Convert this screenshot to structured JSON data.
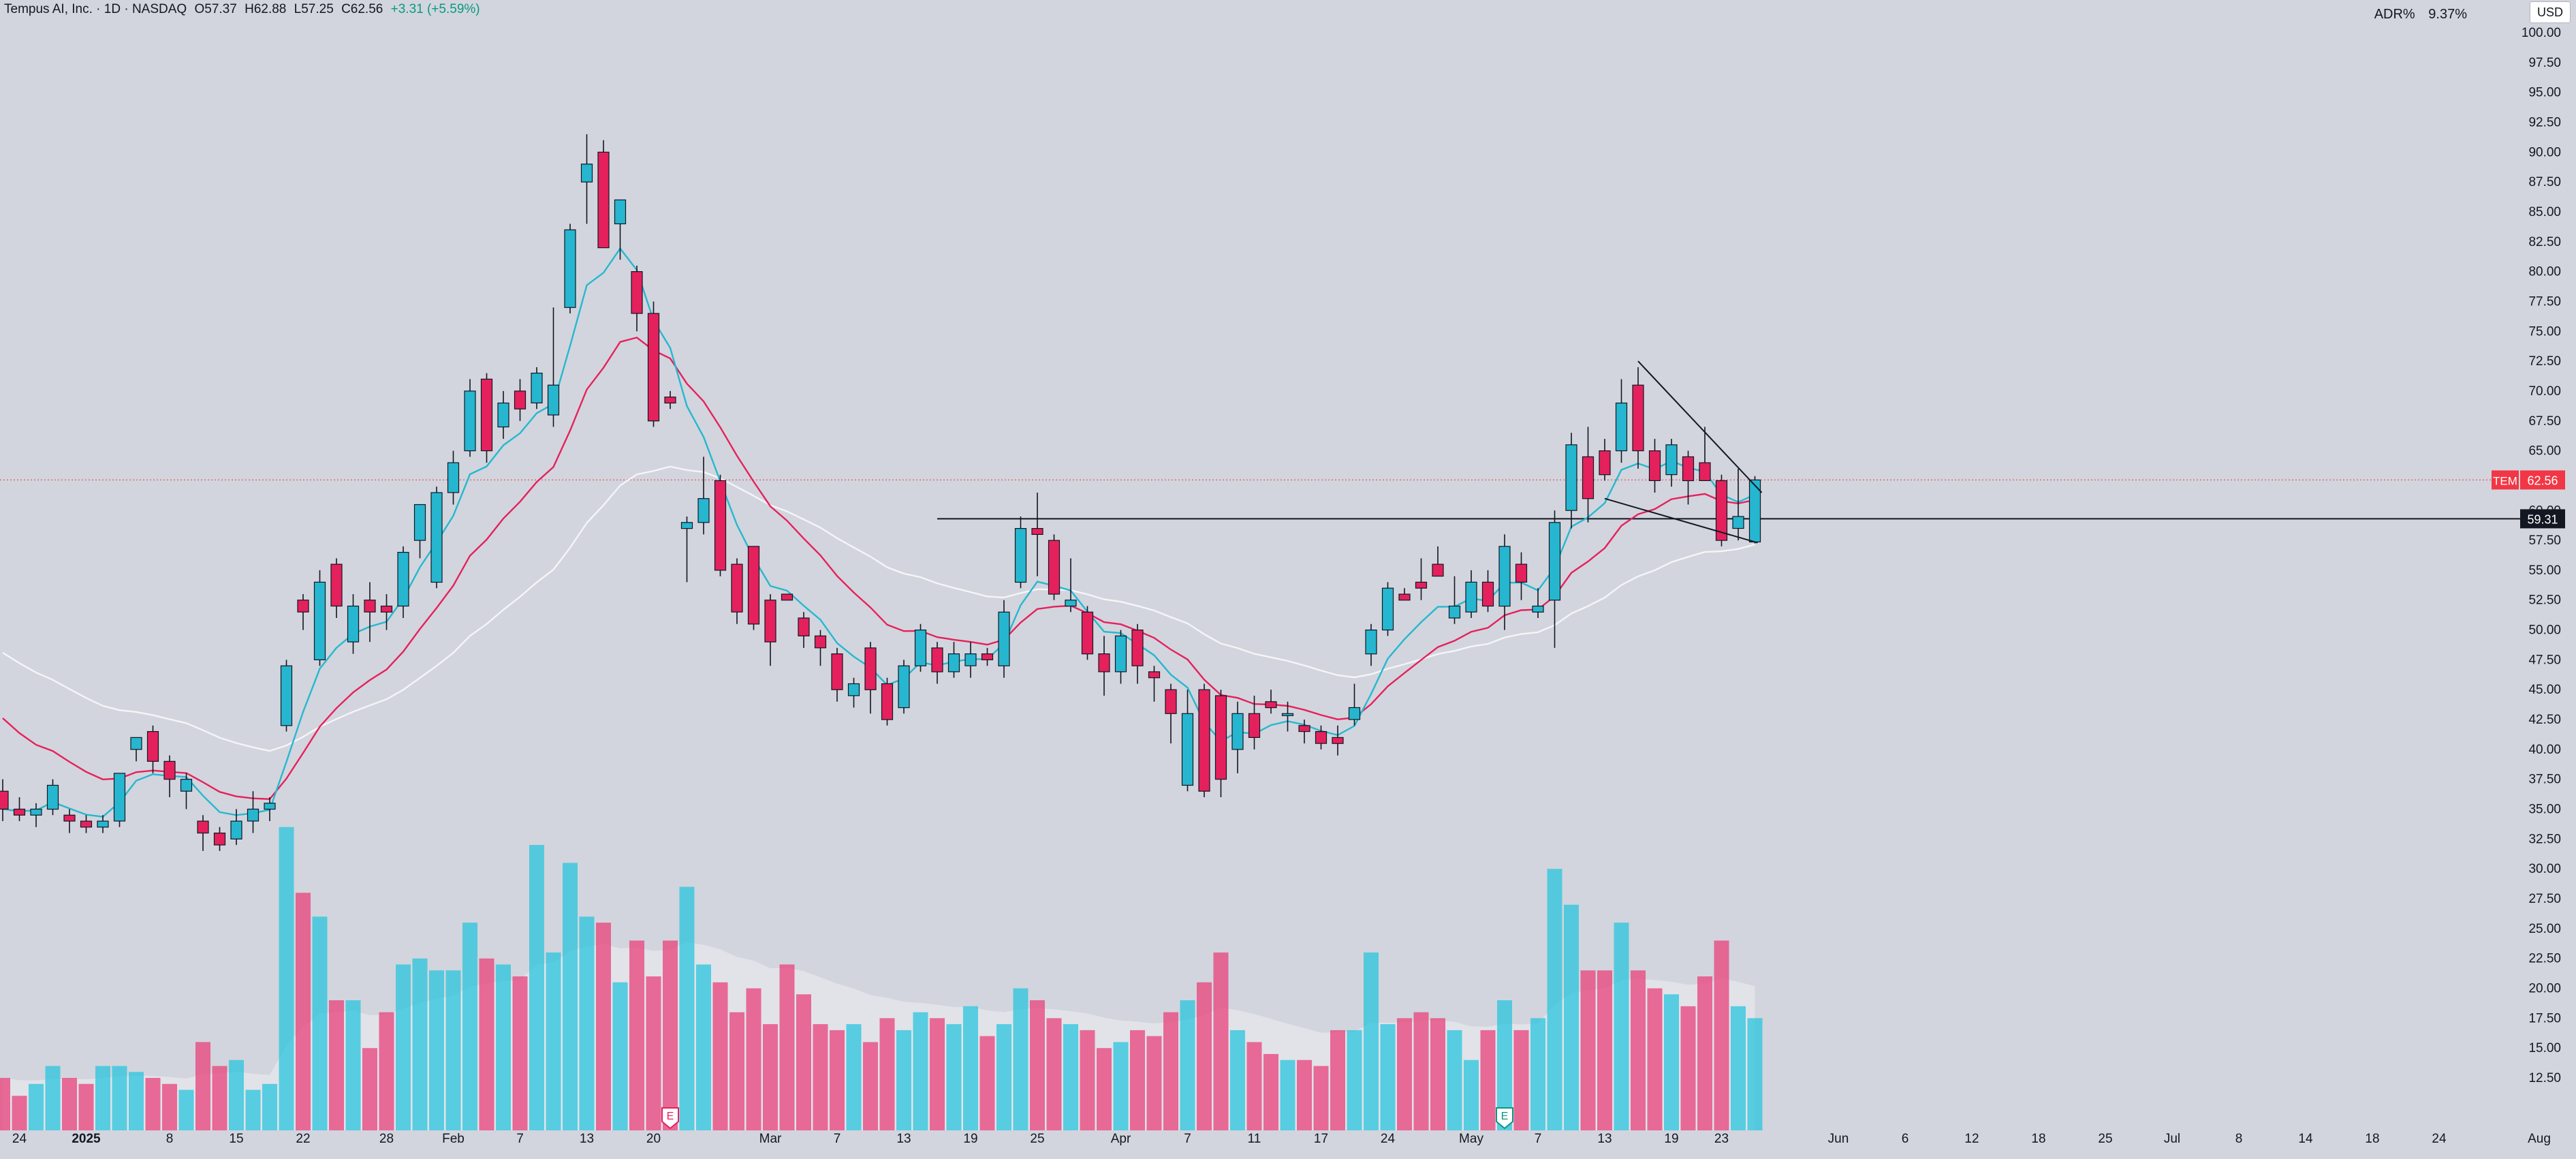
{
  "header": {
    "symbol_title": "Tempus AI, Inc. · 1D · NASDAQ",
    "open": "O57.37",
    "high": "H62.88",
    "low": "L57.25",
    "close": "C62.56",
    "change": "+3.31 (+5.59%)"
  },
  "indicator": {
    "label": "ADR%",
    "value": "9.37%"
  },
  "currency_button": "USD",
  "price_tag": {
    "symbol": "TEM",
    "value": "62.56",
    "color": "#f23645"
  },
  "level_tag": {
    "value": "59.31"
  },
  "colors": {
    "background": "#d2d5dd",
    "up": "#26b6d0",
    "down": "#e5215d",
    "ema_fast": "#25b8d0",
    "ema_mid": "#e5215d",
    "ema_slow": "#f5f5f8",
    "vol_up": "#2ac4dc",
    "vol_down": "#e8407a"
  },
  "chart_data": {
    "type": "candlestick",
    "title": "Tempus AI, Inc. · 1D · NASDAQ",
    "ylim": [
      10,
      101
    ],
    "y_ticks": [
      12.5,
      15.0,
      17.5,
      20.0,
      22.5,
      25.0,
      27.5,
      30.0,
      32.5,
      35.0,
      37.5,
      40.0,
      42.5,
      45.0,
      47.5,
      50.0,
      52.5,
      55.0,
      57.5,
      60.0,
      62.5,
      65.0,
      67.5,
      70.0,
      72.5,
      75.0,
      77.5,
      80.0,
      82.5,
      85.0,
      87.5,
      90.0,
      92.5,
      95.0,
      97.5,
      100.0
    ],
    "x_tick_labels": [
      "24",
      "2025",
      "8",
      "15",
      "22",
      "28",
      "Feb",
      "7",
      "13",
      "20",
      "Mar",
      "7",
      "13",
      "19",
      "25",
      "Apr",
      "7",
      "11",
      "17",
      "24",
      "May",
      "7",
      "13",
      "19",
      "23",
      "Jun",
      "6",
      "12",
      "18",
      "25",
      "Jul",
      "8",
      "14",
      "18",
      "24",
      "Aug"
    ],
    "x_tick_slots": [
      1,
      5,
      10,
      14,
      18,
      23,
      27,
      31,
      35,
      39,
      46,
      50,
      54,
      58,
      62,
      67,
      71,
      75,
      79,
      83,
      88,
      92,
      96,
      100,
      103,
      110,
      114,
      118,
      122,
      126,
      130,
      134,
      138,
      142,
      146,
      152
    ],
    "candles": [
      {
        "o": 36.5,
        "h": 37.5,
        "l": 34,
        "c": 35,
        "v": 12.5
      },
      {
        "o": 35,
        "h": 36,
        "l": 34,
        "c": 34.5,
        "v": 11
      },
      {
        "o": 34.5,
        "h": 35.5,
        "l": 33.5,
        "c": 35,
        "v": 12
      },
      {
        "o": 35,
        "h": 37.5,
        "l": 34.5,
        "c": 37,
        "v": 13.5
      },
      {
        "o": 34.5,
        "h": 35,
        "l": 33,
        "c": 34,
        "v": 12.5
      },
      {
        "o": 34,
        "h": 34.5,
        "l": 33,
        "c": 33.5,
        "v": 12
      },
      {
        "o": 33.5,
        "h": 34.5,
        "l": 33,
        "c": 34,
        "v": 13.5
      },
      {
        "o": 34,
        "h": 38,
        "l": 33.5,
        "c": 38,
        "v": 13.5
      },
      {
        "o": 40,
        "h": 41,
        "l": 39,
        "c": 41,
        "v": 13
      },
      {
        "o": 41.5,
        "h": 42,
        "l": 38,
        "c": 39,
        "v": 12.5
      },
      {
        "o": 39,
        "h": 39.5,
        "l": 36,
        "c": 37.5,
        "v": 12
      },
      {
        "o": 36.5,
        "h": 38,
        "l": 35,
        "c": 37.5,
        "v": 11.5
      },
      {
        "o": 34,
        "h": 34.5,
        "l": 31.5,
        "c": 33,
        "v": 15.5
      },
      {
        "o": 33,
        "h": 33.5,
        "l": 31.5,
        "c": 32,
        "v": 13.5
      },
      {
        "o": 32.5,
        "h": 35,
        "l": 32,
        "c": 34,
        "v": 14
      },
      {
        "o": 34,
        "h": 36.5,
        "l": 33,
        "c": 35,
        "v": 11.5
      },
      {
        "o": 35,
        "h": 36,
        "l": 34,
        "c": 35.5,
        "v": 12
      },
      {
        "o": 42,
        "h": 47.5,
        "l": 41.5,
        "c": 47,
        "v": 33.5
      },
      {
        "o": 52.5,
        "h": 53,
        "l": 50,
        "c": 51.5,
        "v": 28
      },
      {
        "o": 47.5,
        "h": 55,
        "l": 47,
        "c": 54,
        "v": 26
      },
      {
        "o": 55.5,
        "h": 56,
        "l": 51,
        "c": 52,
        "v": 19
      },
      {
        "o": 49,
        "h": 53,
        "l": 48,
        "c": 52,
        "v": 19
      },
      {
        "o": 52.5,
        "h": 54,
        "l": 49,
        "c": 51.5,
        "v": 15
      },
      {
        "o": 52,
        "h": 53,
        "l": 50,
        "c": 51.5,
        "v": 18
      },
      {
        "o": 52,
        "h": 57,
        "l": 51,
        "c": 56.5,
        "v": 22
      },
      {
        "o": 57.5,
        "h": 60,
        "l": 56,
        "c": 60.5,
        "v": 22.5
      },
      {
        "o": 54,
        "h": 62,
        "l": 53.5,
        "c": 61.5,
        "v": 21.5
      },
      {
        "o": 61.5,
        "h": 65,
        "l": 60.5,
        "c": 64,
        "v": 21.5
      },
      {
        "o": 65,
        "h": 71,
        "l": 64.5,
        "c": 70,
        "v": 25.5
      },
      {
        "o": 71,
        "h": 71.5,
        "l": 64,
        "c": 65,
        "v": 22.5
      },
      {
        "o": 67,
        "h": 70,
        "l": 66,
        "c": 69,
        "v": 22
      },
      {
        "o": 70,
        "h": 71,
        "l": 67.5,
        "c": 68.5,
        "v": 21
      },
      {
        "o": 69,
        "h": 72,
        "l": 68.5,
        "c": 71.5,
        "v": 32
      },
      {
        "o": 68,
        "h": 77,
        "l": 67,
        "c": 70.5,
        "v": 23
      },
      {
        "o": 77,
        "h": 84,
        "l": 76.5,
        "c": 83.5,
        "v": 30.5
      },
      {
        "o": 87.5,
        "h": 91.5,
        "l": 84,
        "c": 89,
        "v": 26
      },
      {
        "o": 90,
        "h": 91,
        "l": 82,
        "c": 82,
        "v": 25.5
      },
      {
        "o": 84,
        "h": 86,
        "l": 81,
        "c": 86,
        "v": 20.5
      },
      {
        "o": 80,
        "h": 80.5,
        "l": 75,
        "c": 76.5,
        "v": 24
      },
      {
        "o": 76.5,
        "h": 77.5,
        "l": 67,
        "c": 67.5,
        "v": 21
      },
      {
        "o": 69.5,
        "h": 70,
        "l": 68.5,
        "c": 69,
        "v": 24
      },
      {
        "o": 58.5,
        "h": 59.5,
        "l": 54,
        "c": 59,
        "v": 28.5
      },
      {
        "o": 59,
        "h": 64.5,
        "l": 58,
        "c": 61,
        "v": 22
      },
      {
        "o": 62.5,
        "h": 63,
        "l": 54.5,
        "c": 55,
        "v": 20.5
      },
      {
        "o": 55.5,
        "h": 56,
        "l": 50.5,
        "c": 51.5,
        "v": 18
      },
      {
        "o": 57,
        "h": 57,
        "l": 50,
        "c": 50.5,
        "v": 20
      },
      {
        "o": 52.5,
        "h": 53,
        "l": 47,
        "c": 49,
        "v": 17
      },
      {
        "o": 53,
        "h": 53,
        "l": 52.5,
        "c": 52.5,
        "v": 22
      },
      {
        "o": 51,
        "h": 51.5,
        "l": 48.5,
        "c": 49.5,
        "v": 19.5
      },
      {
        "o": 49.5,
        "h": 50,
        "l": 47,
        "c": 48.5,
        "v": 17
      },
      {
        "o": 48,
        "h": 48.5,
        "l": 44,
        "c": 45,
        "v": 16.5
      },
      {
        "o": 44.5,
        "h": 46,
        "l": 43.5,
        "c": 45.5,
        "v": 17
      },
      {
        "o": 48.5,
        "h": 49,
        "l": 43,
        "c": 45,
        "v": 15.5
      },
      {
        "o": 45.5,
        "h": 46,
        "l": 42,
        "c": 42.5,
        "v": 17.5
      },
      {
        "o": 43.5,
        "h": 47.5,
        "l": 43,
        "c": 47,
        "v": 16.5
      },
      {
        "o": 47,
        "h": 50.5,
        "l": 46.5,
        "c": 50,
        "v": 18
      },
      {
        "o": 48.5,
        "h": 49,
        "l": 45.5,
        "c": 46.5,
        "v": 17.5
      },
      {
        "o": 46.5,
        "h": 49,
        "l": 46,
        "c": 48,
        "v": 17
      },
      {
        "o": 47,
        "h": 49,
        "l": 46,
        "c": 48,
        "v": 18.5
      },
      {
        "o": 48,
        "h": 48.5,
        "l": 47,
        "c": 47.5,
        "v": 16
      },
      {
        "o": 47,
        "h": 52.5,
        "l": 46,
        "c": 51.5,
        "v": 17
      },
      {
        "o": 54,
        "h": 59.5,
        "l": 53.5,
        "c": 58.5,
        "v": 20
      },
      {
        "o": 58.5,
        "h": 61.5,
        "l": 54.5,
        "c": 58,
        "v": 19
      },
      {
        "o": 57.5,
        "h": 58,
        "l": 52.5,
        "c": 53,
        "v": 17.5
      },
      {
        "o": 52,
        "h": 56,
        "l": 51.5,
        "c": 52.5,
        "v": 17
      },
      {
        "o": 51.5,
        "h": 52,
        "l": 47.5,
        "c": 48,
        "v": 16.5
      },
      {
        "o": 48,
        "h": 49.5,
        "l": 44.5,
        "c": 46.5,
        "v": 15
      },
      {
        "o": 46.5,
        "h": 50,
        "l": 45.5,
        "c": 49.5,
        "v": 15.5
      },
      {
        "o": 50,
        "h": 50.5,
        "l": 45.5,
        "c": 47,
        "v": 16.5
      },
      {
        "o": 46.5,
        "h": 47,
        "l": 44,
        "c": 46,
        "v": 16
      },
      {
        "o": 45,
        "h": 45.5,
        "l": 40.5,
        "c": 43,
        "v": 18
      },
      {
        "o": 37,
        "h": 45,
        "l": 36.5,
        "c": 43,
        "v": 19
      },
      {
        "o": 45,
        "h": 45.5,
        "l": 36,
        "c": 36.5,
        "v": 20.5
      },
      {
        "o": 44.5,
        "h": 45,
        "l": 36,
        "c": 37.5,
        "v": 23
      },
      {
        "o": 40,
        "h": 44,
        "l": 38,
        "c": 43,
        "v": 16.5
      },
      {
        "o": 43,
        "h": 44.5,
        "l": 40,
        "c": 41,
        "v": 15.5
      },
      {
        "o": 44,
        "h": 45,
        "l": 43,
        "c": 43.5,
        "v": 14.5
      },
      {
        "o": 43,
        "h": 44,
        "l": 41.5,
        "c": 43,
        "v": 14
      },
      {
        "o": 42,
        "h": 42.5,
        "l": 40.5,
        "c": 41.5,
        "v": 14
      },
      {
        "o": 41.5,
        "h": 42,
        "l": 40,
        "c": 40.5,
        "v": 13.5
      },
      {
        "o": 41,
        "h": 42,
        "l": 39.5,
        "c": 40.5,
        "v": 16.5
      },
      {
        "o": 42.5,
        "h": 45.5,
        "l": 42,
        "c": 43.5,
        "v": 16.5
      },
      {
        "o": 48,
        "h": 50.5,
        "l": 47,
        "c": 50,
        "v": 23
      },
      {
        "o": 50,
        "h": 54,
        "l": 49.5,
        "c": 53.5,
        "v": 17
      },
      {
        "o": 53,
        "h": 53.5,
        "l": 52.5,
        "c": 52.5,
        "v": 17.5
      },
      {
        "o": 54,
        "h": 56,
        "l": 52.5,
        "c": 53.5,
        "v": 18
      },
      {
        "o": 55.5,
        "h": 57,
        "l": 55,
        "c": 54.5,
        "v": 17.5
      },
      {
        "o": 51,
        "h": 54.5,
        "l": 50.5,
        "c": 52,
        "v": 16.5
      },
      {
        "o": 51.5,
        "h": 55,
        "l": 51,
        "c": 54,
        "v": 14
      },
      {
        "o": 54,
        "h": 55,
        "l": 51.5,
        "c": 52,
        "v": 16.5
      },
      {
        "o": 52,
        "h": 58,
        "l": 50,
        "c": 57,
        "v": 19
      },
      {
        "o": 55.5,
        "h": 56.5,
        "l": 52.5,
        "c": 54,
        "v": 16.5
      },
      {
        "o": 51.5,
        "h": 53.5,
        "l": 51,
        "c": 52,
        "v": 17.5
      },
      {
        "o": 52.5,
        "h": 60,
        "l": 48.5,
        "c": 59,
        "v": 30
      },
      {
        "o": 60,
        "h": 66.5,
        "l": 58.5,
        "c": 65.5,
        "v": 27
      },
      {
        "o": 64.5,
        "h": 67,
        "l": 59,
        "c": 61,
        "v": 21.5
      },
      {
        "o": 65,
        "h": 66,
        "l": 62.5,
        "c": 63,
        "v": 21.5
      },
      {
        "o": 65,
        "h": 71,
        "l": 64,
        "c": 69,
        "v": 25.5
      },
      {
        "o": 70.5,
        "h": 72,
        "l": 63.5,
        "c": 65,
        "v": 21.5
      },
      {
        "o": 65,
        "h": 66,
        "l": 61.5,
        "c": 62.5,
        "v": 20
      },
      {
        "o": 63,
        "h": 66,
        "l": 62,
        "c": 65.5,
        "v": 19.5
      },
      {
        "o": 64.5,
        "h": 65,
        "l": 60.5,
        "c": 62.5,
        "v": 18.5
      },
      {
        "o": 64,
        "h": 67,
        "l": 62.5,
        "c": 62.5,
        "v": 21
      },
      {
        "o": 62.5,
        "h": 63,
        "l": 57,
        "c": 57.5,
        "v": 24
      },
      {
        "o": 58.5,
        "h": 63.5,
        "l": 57.5,
        "c": 59.5,
        "v": 18.5
      },
      {
        "o": 57.37,
        "h": 62.88,
        "l": 57.25,
        "c": 62.56,
        "v": 17.5
      }
    ]
  }
}
